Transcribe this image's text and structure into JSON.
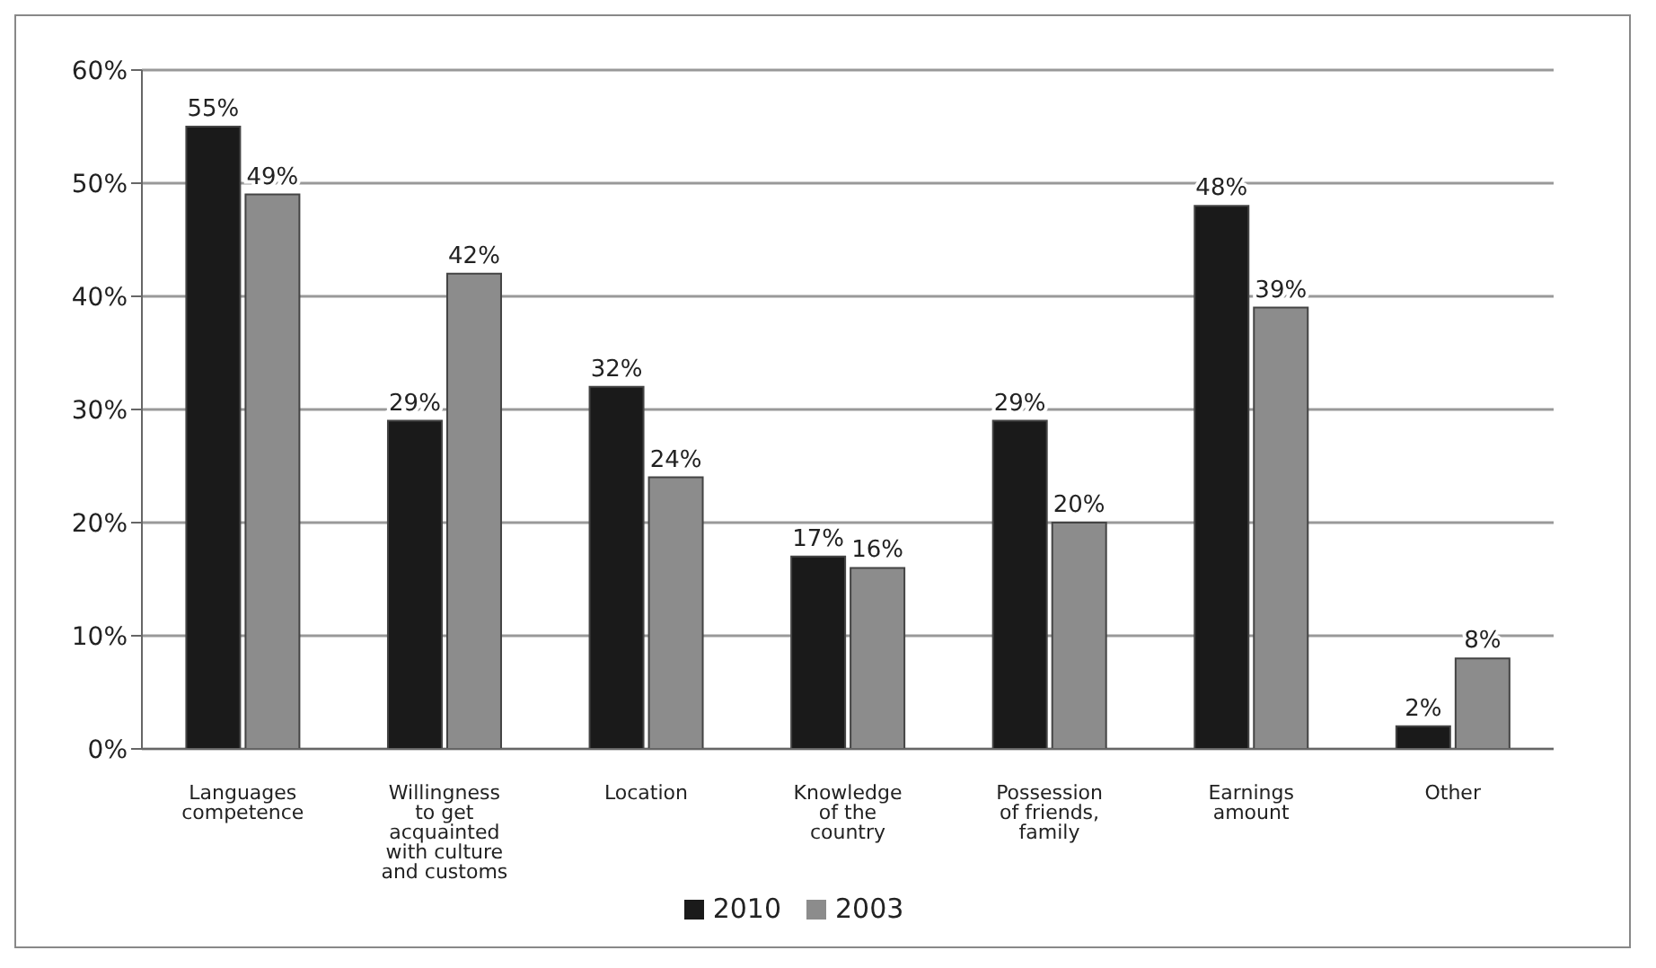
{
  "chart_data": {
    "type": "bar",
    "categories": [
      "Languages competence",
      "Willingness to get acquainted with culture and customs",
      "Location",
      "Knowledge of the country",
      "Possession of friends, family",
      "Earnings amount",
      "Other"
    ],
    "series": [
      {
        "name": "2010",
        "color": "#1a1a1a",
        "values": [
          55,
          29,
          32,
          17,
          29,
          48,
          2
        ],
        "value_labels": [
          "55%",
          "29%",
          "32%",
          "17%",
          "29%",
          "48%",
          "2%"
        ]
      },
      {
        "name": "2003",
        "color": "#8c8c8c",
        "values": [
          49,
          42,
          24,
          16,
          20,
          39,
          8
        ],
        "value_labels": [
          "49%",
          "42%",
          "24%",
          "16%",
          "20%",
          "39%",
          "8%"
        ]
      }
    ],
    "ylim": [
      0,
      60
    ],
    "yticks": [
      {
        "value": 0,
        "label": "0%"
      },
      {
        "value": 10,
        "label": "10%"
      },
      {
        "value": 20,
        "label": "20%"
      },
      {
        "value": 30,
        "label": "30%"
      },
      {
        "value": 40,
        "label": "40%"
      },
      {
        "value": 50,
        "label": "50%"
      },
      {
        "value": 60,
        "label": "60%"
      }
    ],
    "grid": "y",
    "legend": "bottom"
  }
}
